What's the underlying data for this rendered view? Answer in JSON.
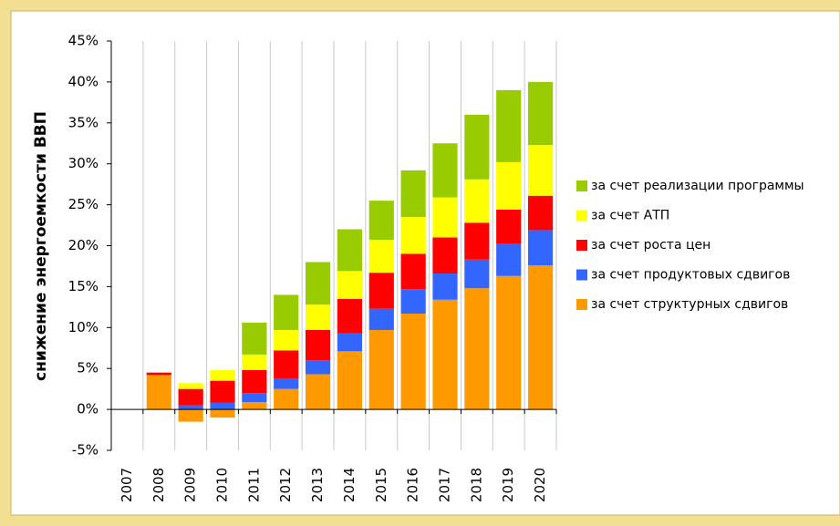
{
  "chart_data": {
    "type": "bar",
    "stacked": true,
    "y_label": "снижение энергоемкости ВВП",
    "categories": [
      "2007",
      "2008",
      "2009",
      "2010",
      "2011",
      "2012",
      "2013",
      "2014",
      "2015",
      "2016",
      "2017",
      "2018",
      "2019",
      "2020"
    ],
    "series": [
      {
        "name": "за счет структурных сдвигов",
        "color": "#ff9900",
        "values": [
          0,
          4.2,
          -1.5,
          -1.0,
          0.9,
          2.5,
          4.3,
          7.1,
          9.7,
          11.7,
          13.4,
          14.8,
          16.3,
          17.6
        ]
      },
      {
        "name": "за счет продуктовых сдвигов",
        "color": "#3366ff",
        "values": [
          0,
          0,
          0.5,
          0.8,
          1.1,
          1.3,
          1.7,
          2.2,
          2.6,
          3.0,
          3.2,
          3.5,
          3.9,
          4.3
        ]
      },
      {
        "name": "за счет роста цен",
        "color": "#ff0000",
        "values": [
          0,
          0.3,
          2.0,
          2.7,
          2.8,
          3.4,
          3.7,
          4.2,
          4.4,
          4.3,
          4.4,
          4.5,
          4.2,
          4.2
        ]
      },
      {
        "name": "за счет АТП",
        "color": "#ffff00",
        "values": [
          0,
          0,
          0.7,
          1.3,
          1.9,
          2.5,
          3.1,
          3.4,
          4.0,
          4.5,
          4.9,
          5.3,
          5.8,
          6.2
        ]
      },
      {
        "name": "за счет реализации программы",
        "color": "#99cc00",
        "values": [
          0,
          0,
          0,
          0,
          3.9,
          4.3,
          5.2,
          5.1,
          4.8,
          5.7,
          6.6,
          7.9,
          8.8,
          7.7
        ]
      }
    ],
    "ylim": [
      -5,
      45
    ],
    "yticks": [
      {
        "value": -5,
        "label": "-5%"
      },
      {
        "value": 0,
        "label": "0%"
      },
      {
        "value": 5,
        "label": "5%"
      },
      {
        "value": 10,
        "label": "10%"
      },
      {
        "value": 15,
        "label": "15%"
      },
      {
        "value": 20,
        "label": "20%"
      },
      {
        "value": 25,
        "label": "25%"
      },
      {
        "value": 30,
        "label": "30%"
      },
      {
        "value": 35,
        "label": "35%"
      },
      {
        "value": 40,
        "label": "40%"
      },
      {
        "value": 45,
        "label": "45%"
      }
    ],
    "grid": true,
    "legend": "right"
  }
}
